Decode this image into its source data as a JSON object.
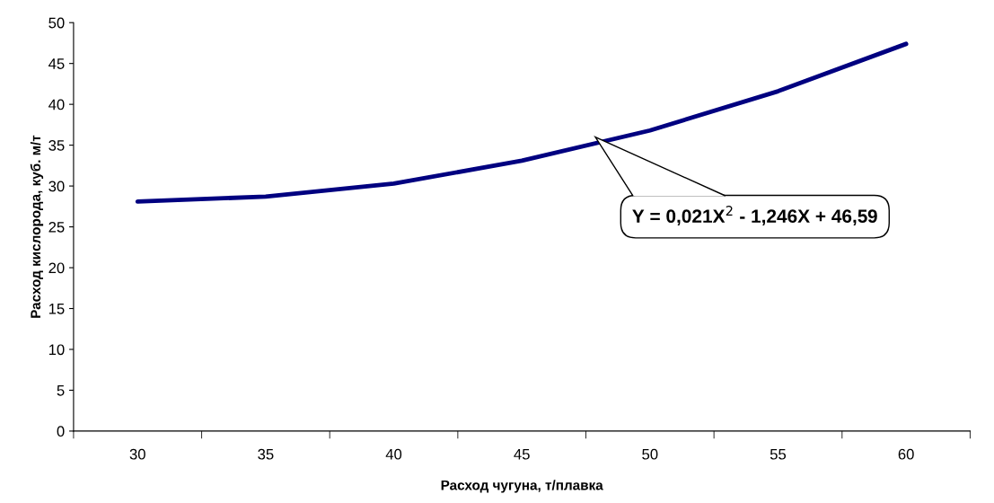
{
  "chart_data": {
    "type": "line",
    "xlabel": "Расход чугуна, т/плавка",
    "ylabel": "Расход кислорода, куб. м/т",
    "categories": [
      "30",
      "35",
      "40",
      "45",
      "50",
      "55",
      "60"
    ],
    "series": [
      {
        "color": "#000080",
        "values": [
          28.1,
          28.7,
          30.3,
          33.1,
          36.8,
          41.6,
          47.4
        ]
      }
    ],
    "ylim": [
      0,
      50
    ],
    "yticks": [
      0,
      5,
      10,
      15,
      20,
      25,
      30,
      35,
      40,
      45,
      50
    ],
    "grid": false,
    "legend": false,
    "marker": "none",
    "line_style": "solid",
    "annotations": [
      "Y = 0,021X$^{2}$ - 1,246X + 46,59"
    ]
  }
}
